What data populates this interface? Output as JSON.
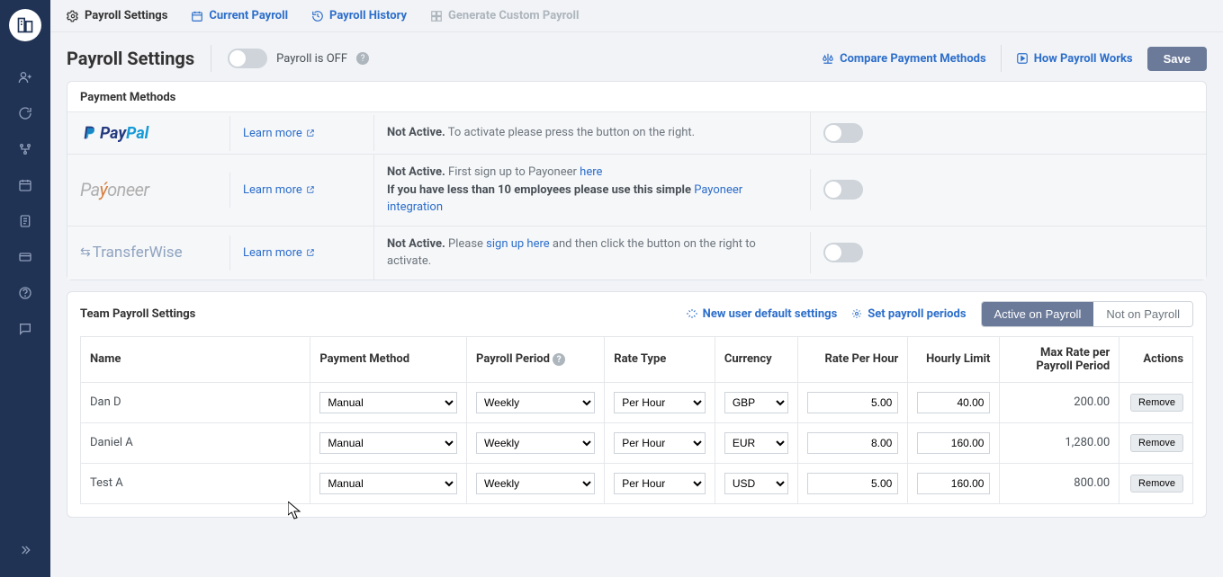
{
  "colors": {
    "sidebar_bg": "#213354",
    "link": "#2c6ecb",
    "text": "#495057",
    "muted": "#6c757d",
    "save_btn": "#6b7a99",
    "page_bg": "#f1f3f6"
  },
  "sidebar": {
    "items": [
      {
        "name": "user-plus"
      },
      {
        "name": "refresh"
      },
      {
        "name": "nodes"
      },
      {
        "name": "calendar"
      },
      {
        "name": "doc"
      },
      {
        "name": "card"
      },
      {
        "name": "help"
      },
      {
        "name": "chat"
      }
    ]
  },
  "tabs": [
    {
      "label": "Payroll Settings",
      "icon": "gear",
      "state": "active"
    },
    {
      "label": "Current Payroll",
      "icon": "calendar",
      "state": "link"
    },
    {
      "label": "Payroll History",
      "icon": "history",
      "state": "link"
    },
    {
      "label": "Generate Custom Payroll",
      "icon": "grid",
      "state": "disabled"
    }
  ],
  "header": {
    "title": "Payroll Settings",
    "toggle_label": "Payroll is OFF",
    "compare_label": "Compare Payment Methods",
    "how_label": "How Payroll Works",
    "save_label": "Save"
  },
  "payment_methods": {
    "title": "Payment Methods",
    "learn_more": "Learn more",
    "rows": [
      {
        "id": "paypal",
        "status_bold": "Not Active.",
        "status_text": " To activate please press the button on the right."
      },
      {
        "id": "payoneer",
        "status_bold": "Not Active.",
        "line1_before": " First sign up to Payoneer ",
        "line1_link": "here",
        "line2_before": "If you have less than 10 employees please use this simple ",
        "line2_link": "Payoneer integration"
      },
      {
        "id": "transferwise",
        "status_bold": "Not Active.",
        "status_before": " Please ",
        "status_link": "sign up here",
        "status_after": " and then click the button on the right to activate."
      }
    ]
  },
  "team_payroll": {
    "title": "Team Payroll Settings",
    "link_new_user": "New user default settings",
    "link_periods": "Set payroll periods",
    "seg_active": "Active on Payroll",
    "seg_inactive": "Not on Payroll",
    "columns": {
      "name": "Name",
      "payment_method": "Payment Method",
      "payroll_period": "Payroll Period",
      "rate_type": "Rate Type",
      "currency": "Currency",
      "rate_per_hour": "Rate Per Hour",
      "hourly_limit": "Hourly Limit",
      "max_rate": "Max Rate per Payroll Period",
      "actions": "Actions"
    },
    "remove_label": "Remove",
    "rows": [
      {
        "name": "Dan D",
        "payment_method": "Manual",
        "period": "Weekly",
        "rate_type": "Per Hour",
        "currency": "GBP",
        "rate": "5.00",
        "limit": "40.00",
        "max": "200.00"
      },
      {
        "name": "Daniel A",
        "payment_method": "Manual",
        "period": "Weekly",
        "rate_type": "Per Hour",
        "currency": "EUR",
        "rate": "8.00",
        "limit": "160.00",
        "max": "1,280.00"
      },
      {
        "name": "Test A",
        "payment_method": "Manual",
        "period": "Weekly",
        "rate_type": "Per Hour",
        "currency": "USD",
        "rate": "5.00",
        "limit": "160.00",
        "max": "800.00"
      }
    ]
  }
}
